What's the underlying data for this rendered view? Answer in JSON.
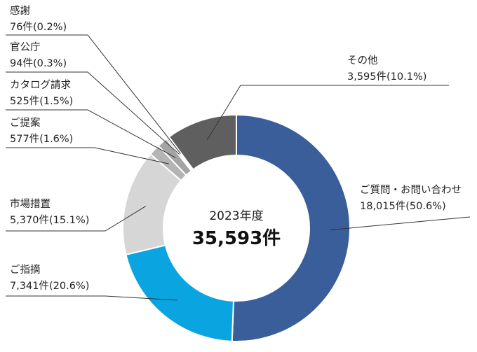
{
  "chart_data": {
    "type": "pie",
    "style": "donut",
    "center_title": "2023年度",
    "center_total": "35,593件",
    "slices": [
      {
        "name": "ご質問・お問い合わせ",
        "count": 18015,
        "count_label": "18,015件",
        "percent": 50.6,
        "percent_label": "(50.6%)",
        "color": "#3a5e9a"
      },
      {
        "name": "ご指摘",
        "count": 7341,
        "count_label": "7,341件",
        "percent": 20.6,
        "percent_label": "(20.6%)",
        "color": "#0aa4e0"
      },
      {
        "name": "市場措置",
        "count": 5370,
        "count_label": "5,370件",
        "percent": 15.1,
        "percent_label": "(15.1%)",
        "color": "#d6d6d6"
      },
      {
        "name": "ご提案",
        "count": 577,
        "count_label": "577件",
        "percent": 1.6,
        "percent_label": "(1.6%)",
        "color": "#b4b4b4"
      },
      {
        "name": "カタログ請求",
        "count": 525,
        "count_label": "525件",
        "percent": 1.5,
        "percent_label": "(1.5%)",
        "color": "#a4a4a4"
      },
      {
        "name": "官公庁",
        "count": 94,
        "count_label": "94件",
        "percent": 0.3,
        "percent_label": "(0.3%)",
        "color": "#8c8c8c"
      },
      {
        "name": "感謝",
        "count": 76,
        "count_label": "76件",
        "percent": 0.2,
        "percent_label": "(0.2%)",
        "color": "#7a7a7a"
      },
      {
        "name": "その他",
        "count": 3595,
        "count_label": "3,595件",
        "percent": 10.1,
        "percent_label": "(10.1%)",
        "color": "#5f5f5f"
      }
    ]
  }
}
